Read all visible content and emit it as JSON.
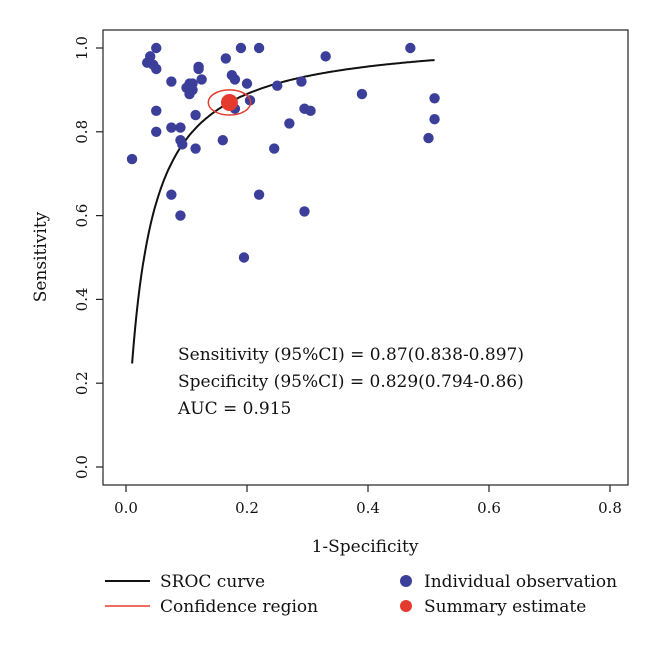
{
  "chart_data": {
    "type": "scatter",
    "title": "",
    "xlabel": "1-Specificity",
    "ylabel": "Sensitivity",
    "xlim": [
      0.0,
      0.8
    ],
    "ylim": [
      0.0,
      1.0
    ],
    "xticks": [
      "0.0",
      "0.2",
      "0.4",
      "0.6",
      "0.8"
    ],
    "yticks": [
      "0.0",
      "0.2",
      "0.4",
      "0.6",
      "0.8",
      "1.0"
    ],
    "grid": false,
    "colors": {
      "observation": "#3b3f99",
      "summary": "#e53b2f",
      "confidence": "#e53b2f",
      "curve": "#111111"
    },
    "individual_observations": [
      [
        0.01,
        0.735
      ],
      [
        0.035,
        0.965
      ],
      [
        0.04,
        0.98
      ],
      [
        0.045,
        0.96
      ],
      [
        0.05,
        1.0
      ],
      [
        0.05,
        0.95
      ],
      [
        0.05,
        0.85
      ],
      [
        0.05,
        0.8
      ],
      [
        0.075,
        0.92
      ],
      [
        0.075,
        0.81
      ],
      [
        0.075,
        0.65
      ],
      [
        0.09,
        0.81
      ],
      [
        0.09,
        0.78
      ],
      [
        0.09,
        0.6
      ],
      [
        0.093,
        0.77
      ],
      [
        0.1,
        0.905
      ],
      [
        0.105,
        0.915
      ],
      [
        0.105,
        0.89
      ],
      [
        0.11,
        0.9
      ],
      [
        0.11,
        0.915
      ],
      [
        0.115,
        0.76
      ],
      [
        0.115,
        0.84
      ],
      [
        0.12,
        0.95
      ],
      [
        0.12,
        0.955
      ],
      [
        0.125,
        0.925
      ],
      [
        0.16,
        0.78
      ],
      [
        0.165,
        0.975
      ],
      [
        0.175,
        0.935
      ],
      [
        0.18,
        0.855
      ],
      [
        0.18,
        0.925
      ],
      [
        0.19,
        1.0
      ],
      [
        0.195,
        0.5
      ],
      [
        0.2,
        0.915
      ],
      [
        0.205,
        0.875
      ],
      [
        0.22,
        1.0
      ],
      [
        0.22,
        0.65
      ],
      [
        0.245,
        0.76
      ],
      [
        0.25,
        0.91
      ],
      [
        0.27,
        0.82
      ],
      [
        0.29,
        0.92
      ],
      [
        0.295,
        0.855
      ],
      [
        0.295,
        0.61
      ],
      [
        0.305,
        0.85
      ],
      [
        0.33,
        0.98
      ],
      [
        0.39,
        0.89
      ],
      [
        0.47,
        1.0
      ],
      [
        0.5,
        0.785
      ],
      [
        0.51,
        0.83
      ],
      [
        0.51,
        0.88
      ]
    ],
    "summary_estimate": {
      "x": 0.171,
      "y": 0.87
    },
    "confidence_region": {
      "x_radius": 0.035,
      "y_radius": 0.03
    },
    "sroc_curve": {
      "x_start": 0.01,
      "x_end": 0.51,
      "log_dor": 3.48
    },
    "annotations": [
      "Sensitivity (95%CI) = 0.87(0.838-0.897)",
      "Specificity (95%CI) = 0.829(0.794-0.86)",
      "AUC = 0.915"
    ],
    "legend": {
      "placement": "bottom",
      "items": [
        {
          "label": "SROC curve",
          "marker": "line",
          "color": "#111111"
        },
        {
          "label": "Confidence region",
          "marker": "line",
          "color": "#e53b2f"
        },
        {
          "label": "Individual observation",
          "marker": "dot",
          "color": "#3b3f99"
        },
        {
          "label": "Summary estimate",
          "marker": "dot",
          "color": "#e53b2f"
        }
      ]
    }
  }
}
